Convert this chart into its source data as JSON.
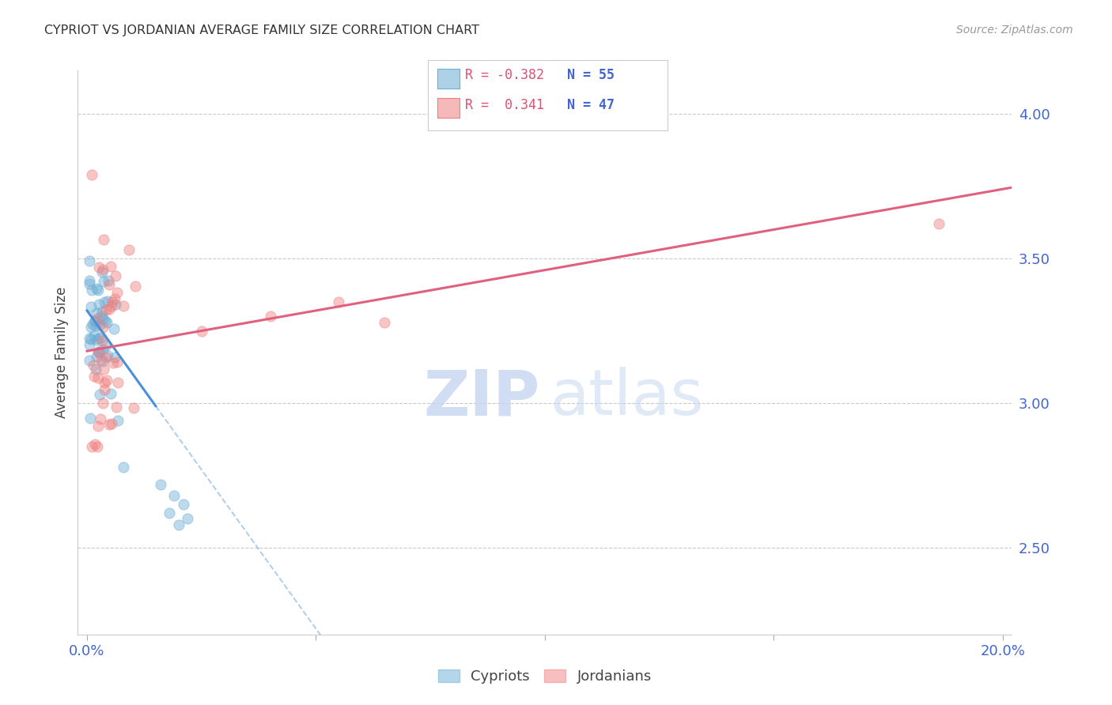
{
  "title": "CYPRIOT VS JORDANIAN AVERAGE FAMILY SIZE CORRELATION CHART",
  "source": "Source: ZipAtlas.com",
  "ylabel": "Average Family Size",
  "yticks": [
    2.5,
    3.0,
    3.5,
    4.0
  ],
  "xticks": [
    0.0,
    0.05,
    0.1,
    0.15,
    0.2
  ],
  "cypriot_color": "#6baed6",
  "jordanian_color": "#f08080",
  "cypriot_line_color": "#4a90d9",
  "jordanian_line_color": "#e06080",
  "background_color": "#ffffff",
  "grid_color": "#bbbbbb",
  "tick_color": "#4466cc",
  "xlim": [
    -0.002,
    0.202
  ],
  "ylim": [
    2.2,
    4.15
  ],
  "watermark_zip_color": "#c8d8f0",
  "watermark_atlas_color": "#c8d8f0",
  "legend_R_cy": "R = -0.382",
  "legend_N_cy": "N = 55",
  "legend_R_jo": "R =  0.341",
  "legend_N_jo": "N = 47"
}
